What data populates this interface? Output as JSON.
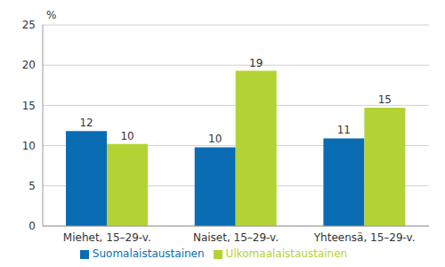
{
  "chart_data": {
    "type": "bar",
    "ylabel": "%",
    "categories": [
      "Miehet, 15–29-v.",
      "Naiset, 15–29-v.",
      "Yhteensä, 15–29-v."
    ],
    "series": [
      {
        "name": "Suomalaistaustainen",
        "color": "#0a6cb3",
        "values": [
          11.8,
          9.8,
          10.9
        ],
        "value_labels": [
          "12",
          "10",
          "11"
        ]
      },
      {
        "name": "Ulkomaalaistaustainen",
        "color": "#b3d334",
        "values": [
          10.2,
          19.3,
          14.7
        ],
        "value_labels": [
          "10",
          "19",
          "15"
        ]
      }
    ],
    "ylim": [
      0,
      25
    ],
    "yticks": [
      0,
      5,
      10,
      15,
      20,
      25
    ],
    "grid": true,
    "legend": "bottom",
    "data_labels": true
  }
}
